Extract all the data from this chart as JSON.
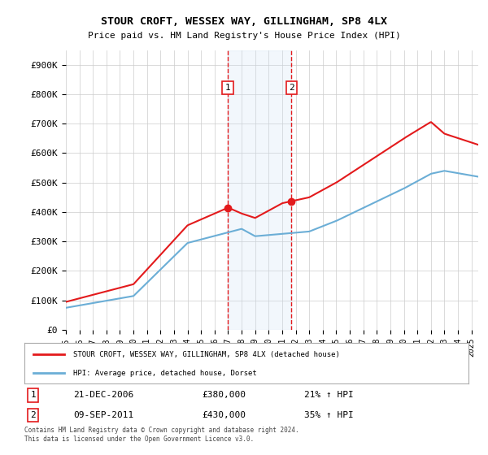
{
  "title": "STOUR CROFT, WESSEX WAY, GILLINGHAM, SP8 4LX",
  "subtitle": "Price paid vs. HM Land Registry's House Price Index (HPI)",
  "ylim": [
    0,
    950000
  ],
  "yticks": [
    0,
    100000,
    200000,
    300000,
    400000,
    500000,
    600000,
    700000,
    800000,
    900000
  ],
  "ytick_labels": [
    "£0",
    "£100K",
    "£200K",
    "£300K",
    "£400K",
    "£500K",
    "£600K",
    "£700K",
    "£800K",
    "£900K"
  ],
  "hpi_color": "#6baed6",
  "price_color": "#e31a1c",
  "transaction1_date": 2006.97,
  "transaction2_date": 2011.69,
  "transaction1_label": "1",
  "transaction2_label": "2",
  "legend_entry1": "STOUR CROFT, WESSEX WAY, GILLINGHAM, SP8 4LX (detached house)",
  "legend_entry2": "HPI: Average price, detached house, Dorset",
  "table_row1_label": "1",
  "table_row1_date": "21-DEC-2006",
  "table_row1_price": "£380,000",
  "table_row1_hpi": "21% ↑ HPI",
  "table_row2_label": "2",
  "table_row2_date": "09-SEP-2011",
  "table_row2_price": "£430,000",
  "table_row2_hpi": "35% ↑ HPI",
  "footnote1": "Contains HM Land Registry data © Crown copyright and database right 2024.",
  "footnote2": "This data is licensed under the Open Government Licence v3.0.",
  "background_color": "#ffffff",
  "grid_color": "#cccccc",
  "shade_color": "#cce0f5"
}
